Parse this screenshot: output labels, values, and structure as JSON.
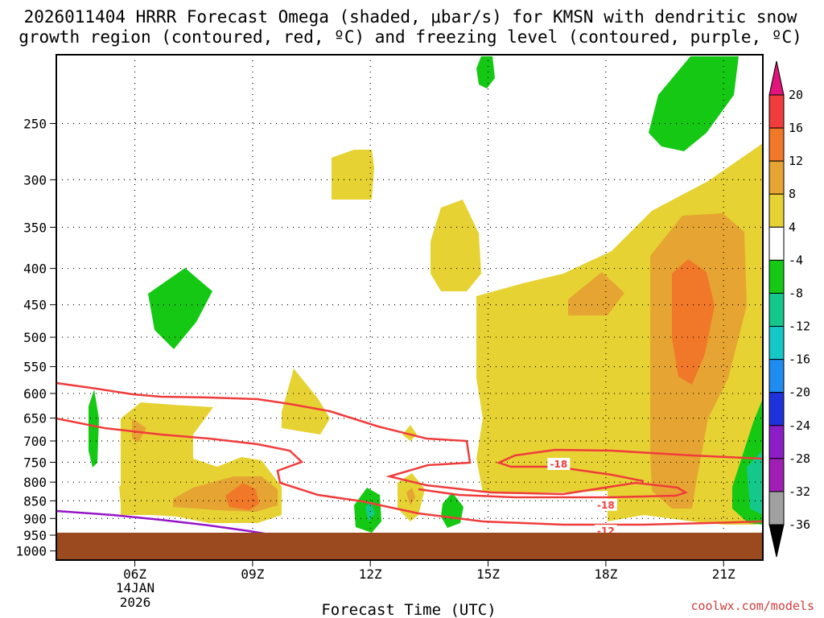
{
  "chart_data": {
    "type": "contour",
    "title_line1": "2026011404 HRRR Forecast Omega (shaded, μbar/s) for KMSN with dendritic snow",
    "title_line2": "growth region (contoured, red, ºC) and freezing level (contoured, purple, ºC)",
    "xlabel": "Forecast Time (UTC)",
    "x_date_labels": [
      "14JAN",
      "2026"
    ],
    "x_ticks": [
      {
        "hour": 6,
        "label": "06Z"
      },
      {
        "hour": 9,
        "label": "09Z"
      },
      {
        "hour": 12,
        "label": "12Z"
      },
      {
        "hour": 15,
        "label": "15Z"
      },
      {
        "hour": 18,
        "label": "18Z"
      },
      {
        "hour": 21,
        "label": "21Z"
      }
    ],
    "x_range_hours": [
      4,
      22
    ],
    "y_ticks": [
      250,
      300,
      350,
      400,
      450,
      500,
      550,
      600,
      650,
      700,
      750,
      800,
      850,
      900,
      950,
      1000
    ],
    "y_range_mb": [
      200,
      1030
    ],
    "colorbar": {
      "bands": [
        {
          "label": "20",
          "color": "#e0147a"
        },
        {
          "label": "16",
          "color": "#f03c3c"
        },
        {
          "label": "12",
          "color": "#f07828"
        },
        {
          "label": "8",
          "color": "#e6a532"
        },
        {
          "label": "4",
          "color": "#e6d232"
        },
        {
          "label": "-4",
          "color": "#ffffff"
        },
        {
          "label": "-8",
          "color": "#14c814"
        },
        {
          "label": "-12",
          "color": "#14c88c"
        },
        {
          "label": "-16",
          "color": "#14c8c8"
        },
        {
          "label": "-20",
          "color": "#1e8cf0"
        },
        {
          "label": "-24",
          "color": "#1e32dc"
        },
        {
          "label": "-28",
          "color": "#8c1ec8"
        },
        {
          "label": "-32",
          "color": "#a01eb4"
        },
        {
          "label": "-36",
          "color": "#a0a0a0"
        }
      ],
      "top_arrow_color": "#e0147a",
      "bottom_arrow_color": "#000000"
    },
    "contour_labels": [
      {
        "text": "-18",
        "hour": 16.8,
        "mb": 755
      },
      {
        "text": "-18",
        "hour": 18.0,
        "mb": 862
      },
      {
        "text": "-12",
        "hour": 18.0,
        "mb": 938
      }
    ],
    "ground_color": "#9a4a1e",
    "omega_levels_ubar_s": [
      4,
      8,
      12,
      -4,
      -8,
      -12
    ]
  },
  "watermark": "coolwx.com/models"
}
